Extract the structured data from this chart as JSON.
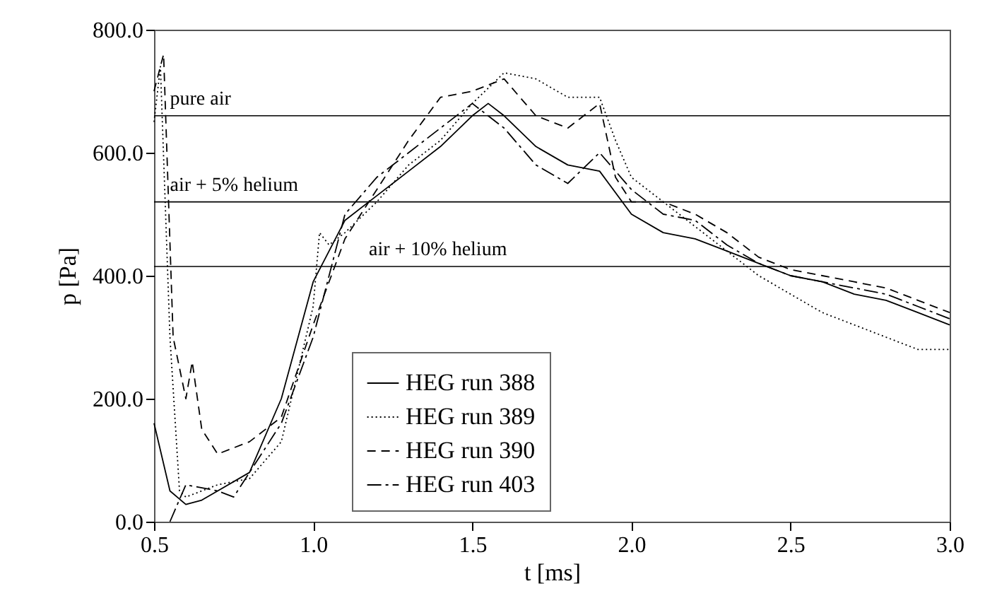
{
  "chart_data": {
    "type": "line",
    "xlabel": "t [ms]",
    "ylabel": "p [Pa]",
    "xlim": [
      0.5,
      3.0
    ],
    "ylim": [
      0,
      800
    ],
    "xticks": [
      {
        "value": 0.5,
        "label": "0.5"
      },
      {
        "value": 1.0,
        "label": "1.0"
      },
      {
        "value": 1.5,
        "label": "1.5"
      },
      {
        "value": 2.0,
        "label": "2.0"
      },
      {
        "value": 2.5,
        "label": "2.5"
      },
      {
        "value": 3.0,
        "label": "3.0"
      }
    ],
    "yticks": [
      {
        "value": 0,
        "label": "0.0"
      },
      {
        "value": 200,
        "label": "200.0"
      },
      {
        "value": 400,
        "label": "400.0"
      },
      {
        "value": 600,
        "label": "600.0"
      },
      {
        "value": 800,
        "label": "800.0"
      }
    ],
    "grid": false,
    "legend": "bottom",
    "marker": "none",
    "ref_lines": [
      {
        "axis": "y",
        "value": 660,
        "label": "pure air",
        "color": "#000000"
      },
      {
        "axis": "y",
        "value": 520,
        "label": "air + 5% helium",
        "color": "#000000"
      },
      {
        "axis": "y",
        "value": 415,
        "label": "air + 10% helium",
        "color": "#000000"
      }
    ],
    "series": [
      {
        "name": "HEG run 388",
        "color": "#000000",
        "line_style": "solid",
        "x": [
          0.5,
          0.55,
          0.6,
          0.65,
          0.7,
          0.8,
          0.9,
          1.0,
          1.1,
          1.2,
          1.3,
          1.4,
          1.5,
          1.55,
          1.6,
          1.7,
          1.8,
          1.9,
          2.0,
          2.1,
          2.2,
          2.3,
          2.4,
          2.5,
          2.6,
          2.7,
          2.8,
          2.9,
          3.0
        ],
        "values": [
          160,
          50,
          28,
          35,
          50,
          80,
          200,
          390,
          490,
          530,
          570,
          610,
          660,
          680,
          660,
          610,
          580,
          570,
          500,
          470,
          460,
          440,
          420,
          400,
          390,
          370,
          360,
          340,
          320
        ]
      },
      {
        "name": "HEG run 389",
        "color": "#000000",
        "line_style": "dotted",
        "x": [
          0.5,
          0.52,
          0.55,
          0.58,
          0.6,
          0.7,
          0.8,
          0.9,
          1.0,
          1.02,
          1.05,
          1.1,
          1.2,
          1.3,
          1.4,
          1.5,
          1.6,
          1.7,
          1.8,
          1.9,
          1.95,
          2.0,
          2.1,
          2.2,
          2.3,
          2.4,
          2.5,
          2.6,
          2.7,
          2.8,
          2.9,
          3.0
        ],
        "values": [
          650,
          740,
          300,
          50,
          40,
          60,
          70,
          130,
          350,
          470,
          450,
          470,
          520,
          580,
          620,
          680,
          730,
          720,
          690,
          690,
          620,
          560,
          520,
          480,
          440,
          400,
          370,
          340,
          320,
          300,
          280,
          280
        ]
      },
      {
        "name": "HEG run 390",
        "color": "#000000",
        "line_style": "dashed",
        "x": [
          0.5,
          0.53,
          0.56,
          0.6,
          0.62,
          0.65,
          0.7,
          0.8,
          0.9,
          1.0,
          1.1,
          1.2,
          1.3,
          1.4,
          1.5,
          1.6,
          1.7,
          1.8,
          1.9,
          1.95,
          2.0,
          2.1,
          2.2,
          2.3,
          2.4,
          2.5,
          2.6,
          2.7,
          2.8,
          2.9,
          3.0
        ],
        "values": [
          700,
          760,
          300,
          200,
          260,
          150,
          110,
          130,
          170,
          320,
          460,
          540,
          620,
          690,
          700,
          720,
          660,
          640,
          680,
          560,
          520,
          520,
          500,
          470,
          430,
          410,
          400,
          390,
          380,
          360,
          340
        ]
      },
      {
        "name": "HEG run 403",
        "color": "#000000",
        "line_style": "dashdot",
        "x": [
          0.55,
          0.6,
          0.7,
          0.75,
          0.8,
          0.9,
          1.0,
          1.1,
          1.2,
          1.3,
          1.4,
          1.5,
          1.6,
          1.7,
          1.8,
          1.9,
          2.0,
          2.1,
          2.2,
          2.3,
          2.4,
          2.5,
          2.6,
          2.7,
          2.8,
          2.9,
          3.0
        ],
        "values": [
          0,
          60,
          50,
          40,
          80,
          160,
          300,
          500,
          560,
          600,
          640,
          680,
          640,
          580,
          550,
          600,
          540,
          500,
          490,
          450,
          420,
          400,
          390,
          380,
          370,
          350,
          330
        ]
      }
    ]
  }
}
